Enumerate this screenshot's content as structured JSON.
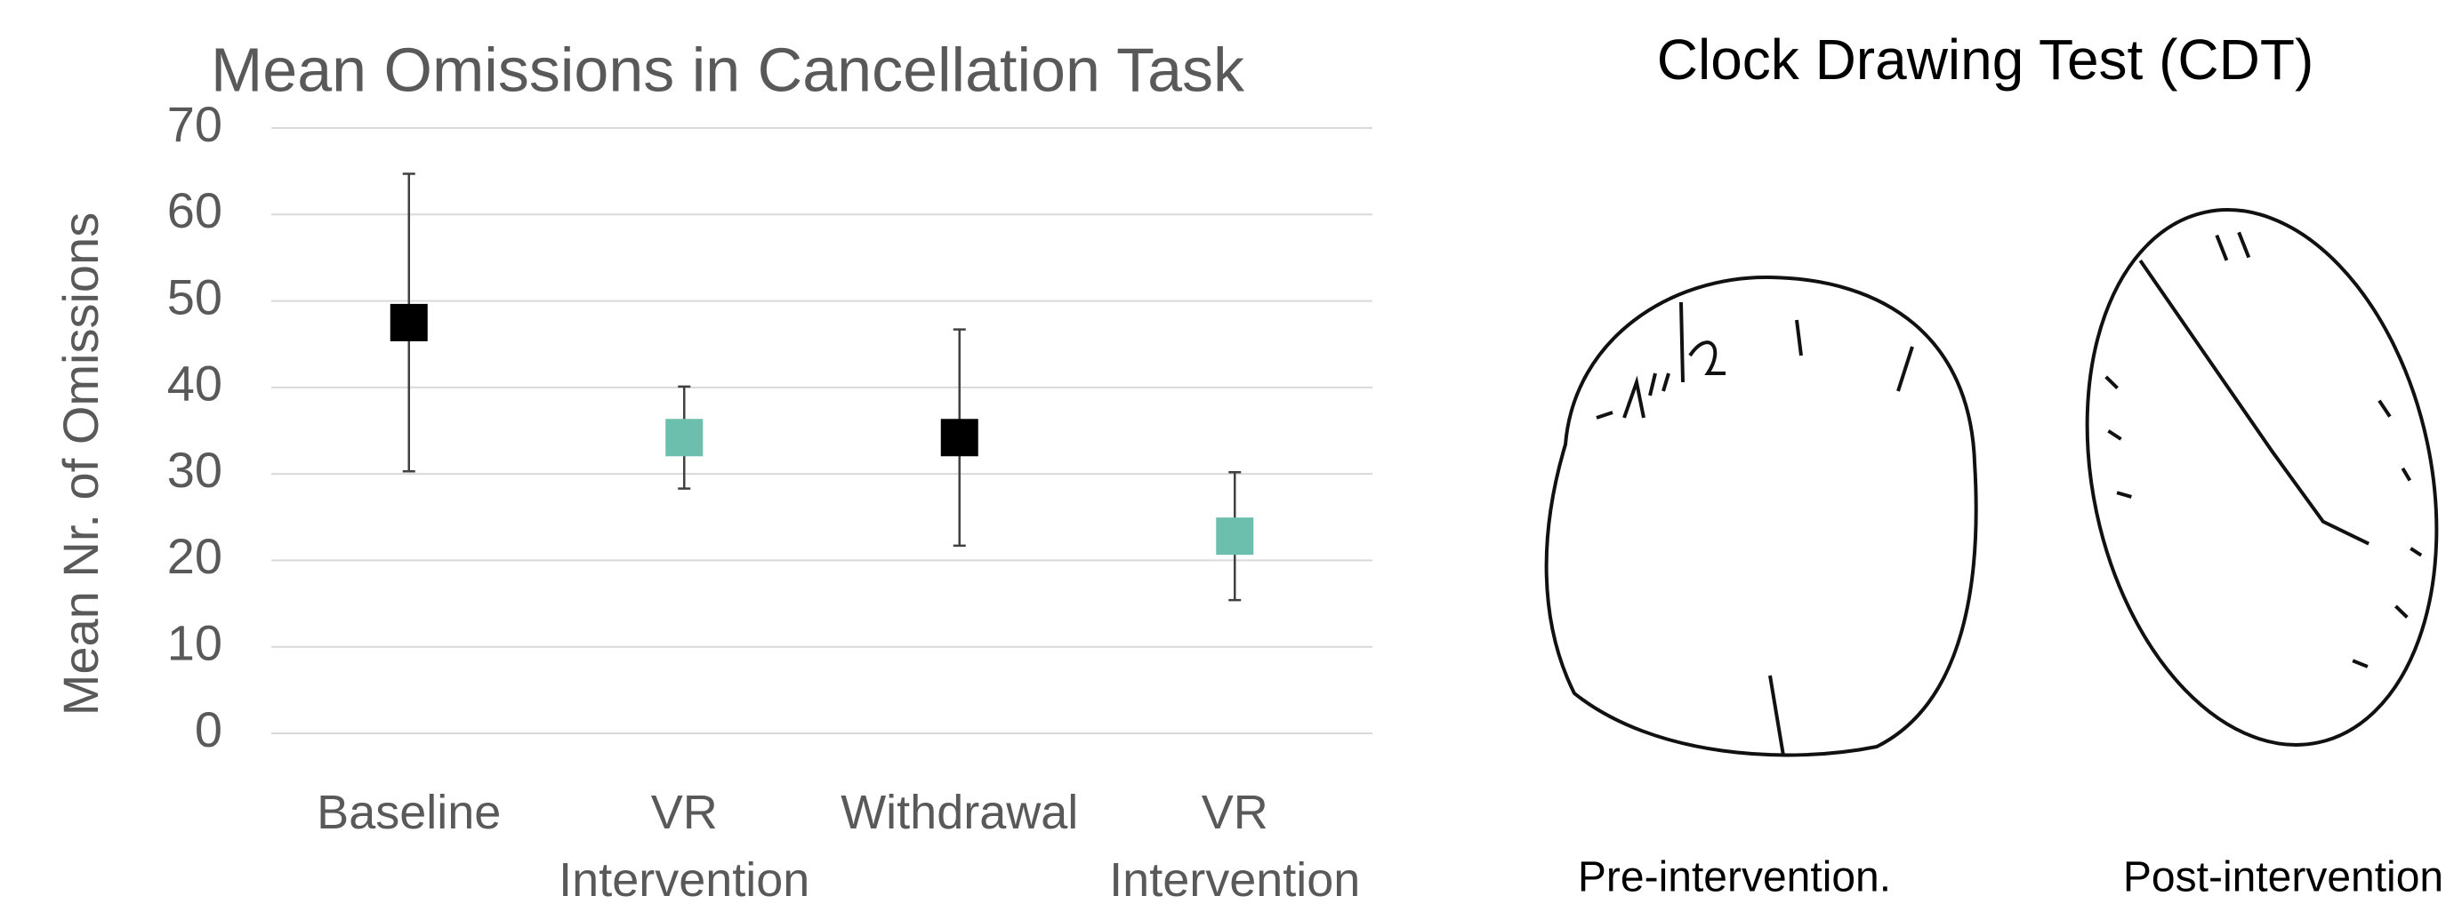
{
  "chart_data": {
    "type": "errorbar",
    "title": "Mean Omissions in Cancellation Task",
    "y_label": "Mean Nr. of Omissions",
    "categories": [
      "Baseline",
      "VR Intervention",
      "Withdrawal",
      "VR Intervention"
    ],
    "values": [
      47.5,
      34.2,
      34.2,
      22.8
    ],
    "errors": [
      17.2,
      5.9,
      12.5,
      7.4
    ],
    "colors": [
      "#000000",
      "#6cbfad",
      "#000000",
      "#6cbfad"
    ],
    "ylim": [
      0,
      70
    ],
    "yticks": [
      0,
      10,
      20,
      30,
      40,
      50,
      60,
      70
    ],
    "grid": true
  },
  "figure": {
    "title": "Clock Drawing Test (CDT)",
    "captions": [
      "Pre-intervention.",
      "Post-intervention"
    ]
  }
}
